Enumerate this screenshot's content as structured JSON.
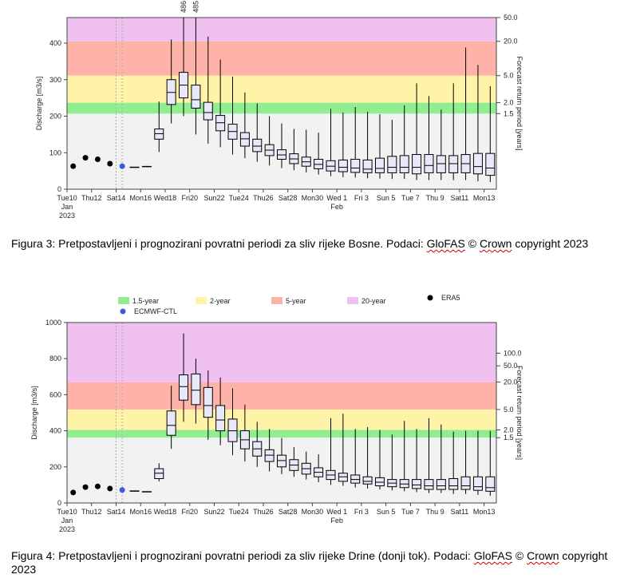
{
  "chart_data": [
    {
      "type": "box",
      "ylabel": "Discharge [m3/s]",
      "y2label": "Forecast return period [years]",
      "ylim": [
        0,
        470
      ],
      "yticks": [
        0,
        100,
        200,
        300,
        400
      ],
      "bands": [
        {
          "from": 0,
          "to": 207,
          "color": "#f2f2f2"
        },
        {
          "from": 207,
          "to": 237,
          "color": "#90ee90"
        },
        {
          "from": 237,
          "to": 311,
          "color": "#fff3a8"
        },
        {
          "from": 311,
          "to": 405,
          "color": "#ffb3a8"
        },
        {
          "from": 405,
          "to": 470,
          "color": "#f0c0f0"
        }
      ],
      "return_levels": [
        {
          "label": "1.5",
          "value": 207
        },
        {
          "label": "2.0",
          "value": 237
        },
        {
          "label": "5.0",
          "value": 311
        },
        {
          "label": "20.0",
          "value": 405
        },
        {
          "label": "50.0",
          "value": 470
        }
      ],
      "xticks": [
        {
          "day": 0,
          "label": "Tue10",
          "sub": "Jan",
          "sub2": "2023"
        },
        {
          "day": 2,
          "label": "Thu12"
        },
        {
          "day": 4,
          "label": "Sat14"
        },
        {
          "day": 6,
          "label": "Mon16"
        },
        {
          "day": 8,
          "label": "Wed18"
        },
        {
          "day": 10,
          "label": "Fri20"
        },
        {
          "day": 12,
          "label": "Sun22"
        },
        {
          "day": 14,
          "label": "Tue24"
        },
        {
          "day": 16,
          "label": "Thu26"
        },
        {
          "day": 18,
          "label": "Sat28"
        },
        {
          "day": 20,
          "label": "Mon30"
        },
        {
          "day": 22,
          "label": "Wed 1",
          "sub": "Feb"
        },
        {
          "day": 24,
          "label": "Fri 3"
        },
        {
          "day": 26,
          "label": "Sun 5"
        },
        {
          "day": 28,
          "label": "Tue 7"
        },
        {
          "day": 30,
          "label": "Thu 9"
        },
        {
          "day": 32,
          "label": "Sat11"
        },
        {
          "day": 34,
          "label": "Mon13"
        }
      ],
      "vlines": [
        4,
        4.5
      ],
      "era5": [
        {
          "day": 0.5,
          "value": 63
        },
        {
          "day": 1.5,
          "value": 86
        },
        {
          "day": 2.5,
          "value": 82
        },
        {
          "day": 3.5,
          "value": 70
        }
      ],
      "ctl": [
        {
          "day": 4.5,
          "value": 63
        }
      ],
      "hres": [
        {
          "day": 5.5,
          "value": 60
        },
        {
          "day": 6.5,
          "value": 62
        }
      ],
      "over_labels": [
        {
          "day": 9.5,
          "text": "486"
        },
        {
          "day": 10.5,
          "text": "485"
        }
      ],
      "boxes": [
        {
          "day": 7.5,
          "min": 102,
          "q1": 137,
          "med": 152,
          "q3": 165,
          "max": 240
        },
        {
          "day": 8.5,
          "min": 180,
          "q1": 232,
          "med": 265,
          "q3": 300,
          "max": 410
        },
        {
          "day": 9.5,
          "min": 200,
          "q1": 250,
          "med": 285,
          "q3": 320,
          "max": 470
        },
        {
          "day": 10.5,
          "min": 150,
          "q1": 222,
          "med": 245,
          "q3": 285,
          "max": 470
        },
        {
          "day": 11.5,
          "min": 125,
          "q1": 190,
          "med": 210,
          "q3": 238,
          "max": 418
        },
        {
          "day": 12.5,
          "min": 115,
          "q1": 160,
          "med": 182,
          "q3": 202,
          "max": 355
        },
        {
          "day": 13.5,
          "min": 95,
          "q1": 137,
          "med": 158,
          "q3": 178,
          "max": 308
        },
        {
          "day": 14.5,
          "min": 85,
          "q1": 118,
          "med": 138,
          "q3": 155,
          "max": 265
        },
        {
          "day": 15.5,
          "min": 75,
          "q1": 103,
          "med": 118,
          "q3": 137,
          "max": 235
        },
        {
          "day": 16.5,
          "min": 65,
          "q1": 92,
          "med": 107,
          "q3": 122,
          "max": 200
        },
        {
          "day": 17.5,
          "min": 58,
          "q1": 82,
          "med": 94,
          "q3": 108,
          "max": 180
        },
        {
          "day": 18.5,
          "min": 52,
          "q1": 70,
          "med": 83,
          "q3": 97,
          "max": 165
        },
        {
          "day": 19.5,
          "min": 46,
          "q1": 63,
          "med": 75,
          "q3": 88,
          "max": 163
        },
        {
          "day": 20.5,
          "min": 40,
          "q1": 56,
          "med": 68,
          "q3": 82,
          "max": 155
        },
        {
          "day": 21.5,
          "min": 36,
          "q1": 50,
          "med": 63,
          "q3": 78,
          "max": 220
        },
        {
          "day": 22.5,
          "min": 33,
          "q1": 48,
          "med": 60,
          "q3": 80,
          "max": 210
        },
        {
          "day": 23.5,
          "min": 32,
          "q1": 46,
          "med": 58,
          "q3": 82,
          "max": 225
        },
        {
          "day": 24.5,
          "min": 30,
          "q1": 45,
          "med": 55,
          "q3": 80,
          "max": 212
        },
        {
          "day": 25.5,
          "min": 29,
          "q1": 45,
          "med": 57,
          "q3": 85,
          "max": 205
        },
        {
          "day": 26.5,
          "min": 28,
          "q1": 45,
          "med": 60,
          "q3": 90,
          "max": 190
        },
        {
          "day": 27.5,
          "min": 28,
          "q1": 45,
          "med": 60,
          "q3": 92,
          "max": 230
        },
        {
          "day": 28.5,
          "min": 25,
          "q1": 42,
          "med": 60,
          "q3": 95,
          "max": 290
        },
        {
          "day": 29.5,
          "min": 25,
          "q1": 45,
          "med": 65,
          "q3": 95,
          "max": 255
        },
        {
          "day": 30.5,
          "min": 25,
          "q1": 45,
          "med": 70,
          "q3": 92,
          "max": 218
        },
        {
          "day": 31.5,
          "min": 25,
          "q1": 45,
          "med": 70,
          "q3": 92,
          "max": 290
        },
        {
          "day": 32.5,
          "min": 25,
          "q1": 45,
          "med": 70,
          "q3": 95,
          "max": 388
        },
        {
          "day": 33.5,
          "min": 22,
          "q1": 42,
          "med": 62,
          "q3": 98,
          "max": 340
        },
        {
          "day": 34.5,
          "min": 20,
          "q1": 38,
          "med": 58,
          "q3": 98,
          "max": 282
        }
      ]
    },
    {
      "type": "box",
      "ylabel": "Discharge [m3/s]",
      "y2label": "Forecast return period [years]",
      "ylim": [
        0,
        1000
      ],
      "yticks": [
        0,
        200,
        400,
        600,
        800,
        1000
      ],
      "legend": [
        {
          "label": "1.5-year",
          "color": "#90ee90",
          "kind": "rect"
        },
        {
          "label": "2-year",
          "color": "#fff3a8",
          "kind": "rect"
        },
        {
          "label": "5-year",
          "color": "#ffb3a8",
          "kind": "rect"
        },
        {
          "label": "20-year",
          "color": "#f0c0f0",
          "kind": "rect"
        },
        {
          "label": "ERA5",
          "color": "#000000",
          "kind": "dot"
        },
        {
          "label": "ECMWF-CTL",
          "color": "#3b5bdb",
          "kind": "dot"
        }
      ],
      "bands": [
        {
          "from": 0,
          "to": 362,
          "color": "#f2f2f2"
        },
        {
          "from": 362,
          "to": 405,
          "color": "#90ee90"
        },
        {
          "from": 405,
          "to": 518,
          "color": "#fff3a8"
        },
        {
          "from": 518,
          "to": 670,
          "color": "#ffb3a8"
        },
        {
          "from": 670,
          "to": 1000,
          "color": "#f0c0f0"
        }
      ],
      "return_levels": [
        {
          "label": "1.5",
          "value": 362
        },
        {
          "label": "2.0",
          "value": 405
        },
        {
          "label": "5.0",
          "value": 518
        },
        {
          "label": "20.0",
          "value": 670
        },
        {
          "label": "50.0",
          "value": 760
        },
        {
          "label": "100.0",
          "value": 830
        }
      ],
      "xticks": [
        {
          "day": 0,
          "label": "Tue10",
          "sub": "Jan",
          "sub2": "2023"
        },
        {
          "day": 2,
          "label": "Thu12"
        },
        {
          "day": 4,
          "label": "Sat14"
        },
        {
          "day": 6,
          "label": "Mon16"
        },
        {
          "day": 8,
          "label": "Wed18"
        },
        {
          "day": 10,
          "label": "Fri20"
        },
        {
          "day": 12,
          "label": "Sun22"
        },
        {
          "day": 14,
          "label": "Tue24"
        },
        {
          "day": 16,
          "label": "Thu26"
        },
        {
          "day": 18,
          "label": "Sat28"
        },
        {
          "day": 20,
          "label": "Mon30"
        },
        {
          "day": 22,
          "label": "Wed 1",
          "sub": "Feb"
        },
        {
          "day": 24,
          "label": "Fri 3"
        },
        {
          "day": 26,
          "label": "Sun 5"
        },
        {
          "day": 28,
          "label": "Tue 7"
        },
        {
          "day": 30,
          "label": "Thu 9"
        },
        {
          "day": 32,
          "label": "Sat11"
        },
        {
          "day": 34,
          "label": "Mon13"
        }
      ],
      "vlines": [
        4,
        4.5
      ],
      "era5": [
        {
          "day": 0.5,
          "value": 58
        },
        {
          "day": 1.5,
          "value": 88
        },
        {
          "day": 2.5,
          "value": 92
        },
        {
          "day": 3.5,
          "value": 80
        }
      ],
      "ctl": [
        {
          "day": 4.5,
          "value": 72
        }
      ],
      "hres": [
        {
          "day": 5.5,
          "value": 66
        },
        {
          "day": 6.5,
          "value": 62
        }
      ],
      "over_labels": [],
      "boxes": [
        {
          "day": 7.5,
          "min": 120,
          "q1": 135,
          "med": 165,
          "q3": 190,
          "max": 220
        },
        {
          "day": 8.5,
          "min": 300,
          "q1": 375,
          "med": 430,
          "q3": 510,
          "max": 650
        },
        {
          "day": 9.5,
          "min": 450,
          "q1": 570,
          "med": 645,
          "q3": 710,
          "max": 940
        },
        {
          "day": 10.5,
          "min": 440,
          "q1": 545,
          "med": 625,
          "q3": 715,
          "max": 800
        },
        {
          "day": 11.5,
          "min": 350,
          "q1": 475,
          "med": 540,
          "q3": 640,
          "max": 735
        },
        {
          "day": 12.5,
          "min": 320,
          "q1": 400,
          "med": 460,
          "q3": 540,
          "max": 695
        },
        {
          "day": 13.5,
          "min": 265,
          "q1": 340,
          "med": 400,
          "q3": 465,
          "max": 635
        },
        {
          "day": 14.5,
          "min": 230,
          "q1": 300,
          "med": 350,
          "q3": 400,
          "max": 545
        },
        {
          "day": 15.5,
          "min": 200,
          "q1": 260,
          "med": 300,
          "q3": 340,
          "max": 450
        },
        {
          "day": 16.5,
          "min": 175,
          "q1": 230,
          "med": 265,
          "q3": 295,
          "max": 410
        },
        {
          "day": 17.5,
          "min": 160,
          "q1": 200,
          "med": 235,
          "q3": 265,
          "max": 360
        },
        {
          "day": 18.5,
          "min": 145,
          "q1": 180,
          "med": 210,
          "q3": 240,
          "max": 310
        },
        {
          "day": 19.5,
          "min": 130,
          "q1": 160,
          "med": 190,
          "q3": 220,
          "max": 285
        },
        {
          "day": 20.5,
          "min": 115,
          "q1": 145,
          "med": 170,
          "q3": 195,
          "max": 270
        },
        {
          "day": 21.5,
          "min": 100,
          "q1": 130,
          "med": 155,
          "q3": 180,
          "max": 470
        },
        {
          "day": 22.5,
          "min": 95,
          "q1": 120,
          "med": 145,
          "q3": 165,
          "max": 495
        },
        {
          "day": 23.5,
          "min": 85,
          "q1": 110,
          "med": 130,
          "q3": 155,
          "max": 410
        },
        {
          "day": 24.5,
          "min": 80,
          "q1": 105,
          "med": 120,
          "q3": 145,
          "max": 420
        },
        {
          "day": 25.5,
          "min": 75,
          "q1": 95,
          "med": 115,
          "q3": 140,
          "max": 405
        },
        {
          "day": 26.5,
          "min": 70,
          "q1": 90,
          "med": 110,
          "q3": 130,
          "max": 380
        },
        {
          "day": 27.5,
          "min": 65,
          "q1": 85,
          "med": 105,
          "q3": 130,
          "max": 455
        },
        {
          "day": 28.5,
          "min": 60,
          "q1": 80,
          "med": 100,
          "q3": 130,
          "max": 410
        },
        {
          "day": 29.5,
          "min": 55,
          "q1": 75,
          "med": 95,
          "q3": 130,
          "max": 470
        },
        {
          "day": 30.5,
          "min": 55,
          "q1": 75,
          "med": 95,
          "q3": 130,
          "max": 435
        },
        {
          "day": 31.5,
          "min": 50,
          "q1": 75,
          "med": 95,
          "q3": 135,
          "max": 395
        },
        {
          "day": 32.5,
          "min": 50,
          "q1": 75,
          "med": 95,
          "q3": 145,
          "max": 400
        },
        {
          "day": 33.5,
          "min": 45,
          "q1": 70,
          "med": 90,
          "q3": 145,
          "max": 400
        },
        {
          "day": 34.5,
          "min": 40,
          "q1": 65,
          "med": 85,
          "q3": 145,
          "max": 400
        }
      ]
    }
  ],
  "captions": [
    {
      "before": "Figura 3: Pretpostavljeni i prognozirani povratni periodi za sliv rijeke Bosne. Podaci: ",
      "brand": "GloFAS",
      "mid": " © ",
      "crown": "Crown",
      "after": " copyright 2023"
    },
    {
      "before": "Figura 4: Pretpostavljeni i prognozirani povratni periodi za sliv rijeke Drine (donji tok). Podaci: ",
      "brand": "GloFAS",
      "mid": " © ",
      "crown": "Crown",
      "after": " copyright 2023"
    }
  ]
}
